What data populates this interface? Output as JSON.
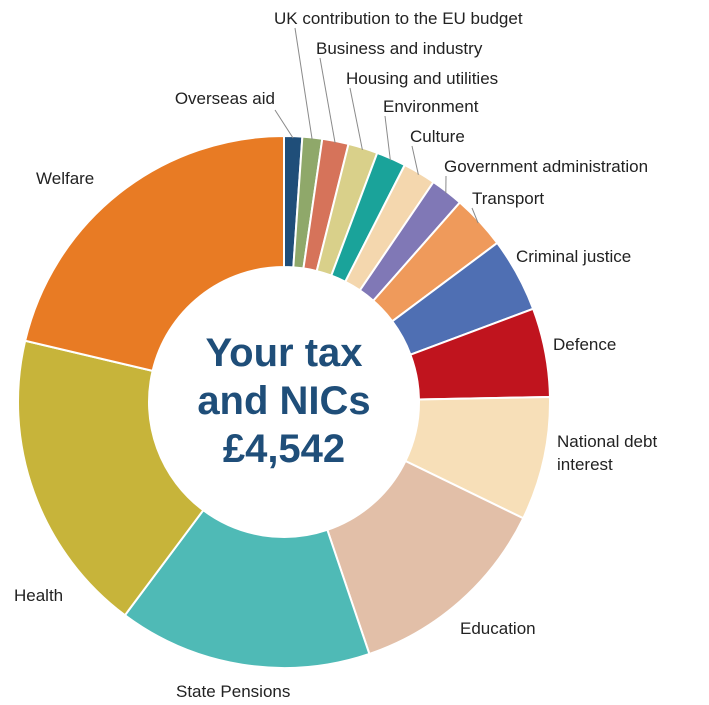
{
  "chart_data": {
    "type": "pie",
    "variant": "donut",
    "center_text": {
      "line1": "Your tax",
      "line2": "and NICs",
      "line3": "£4,542"
    },
    "slices": [
      {
        "label": "Overseas aid",
        "percent": 1.1,
        "color": "#1f4e79"
      },
      {
        "label": "UK contribution to the EU budget",
        "percent": 1.2,
        "color": "#8fa86a"
      },
      {
        "label": "Business and industry",
        "percent": 1.6,
        "color": "#d6735a"
      },
      {
        "label": "Housing and utilities",
        "percent": 1.8,
        "color": "#d9d08a"
      },
      {
        "label": "Environment",
        "percent": 1.8,
        "color": "#1aa39a"
      },
      {
        "label": "Culture",
        "percent": 2.0,
        "color": "#f4d7ae"
      },
      {
        "label": "Government administration",
        "percent": 2.0,
        "color": "#8078b6"
      },
      {
        "label": "Transport",
        "percent": 3.3,
        "color": "#ef9a5b"
      },
      {
        "label": "Criminal justice",
        "percent": 4.5,
        "color": "#4f6fb3"
      },
      {
        "label": "Defence",
        "percent": 5.4,
        "color": "#c0141e"
      },
      {
        "label": "National debt interest",
        "percent": 7.5,
        "color": "#f7dfb8"
      },
      {
        "label": "Education",
        "percent": 12.6,
        "color": "#e2bfa8"
      },
      {
        "label": "State Pensions",
        "percent": 15.4,
        "color": "#4fbab6"
      },
      {
        "label": "Health",
        "percent": 18.5,
        "color": "#c7b43a"
      },
      {
        "label": "Welfare",
        "percent": 21.3,
        "color": "#e87b24"
      }
    ]
  }
}
